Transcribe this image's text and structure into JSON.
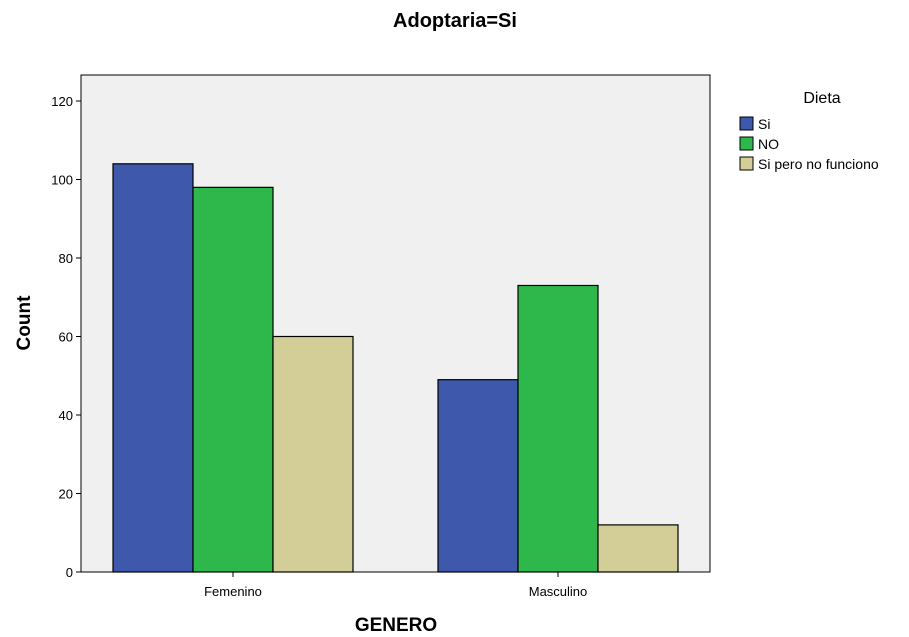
{
  "chart_data": {
    "type": "bar",
    "title": "Adoptaria=Si",
    "xlabel": "GENERO",
    "ylabel": "Count",
    "categories": [
      "Femenino",
      "Masculino"
    ],
    "ylim": [
      0,
      128
    ],
    "yticks": [
      0,
      20,
      40,
      60,
      80,
      100,
      120
    ],
    "legend_title": "Dieta",
    "legend_position": "right",
    "plot_background": "#f0f0f0",
    "grid": false,
    "series": [
      {
        "name": "Si",
        "color": "#3e58ac",
        "values": [
          104,
          49
        ]
      },
      {
        "name": "NO",
        "color": "#2eb84b",
        "values": [
          98,
          73
        ]
      },
      {
        "name": "Si pero no funciono",
        "color": "#d3ce97",
        "values": [
          60,
          12
        ]
      }
    ]
  }
}
